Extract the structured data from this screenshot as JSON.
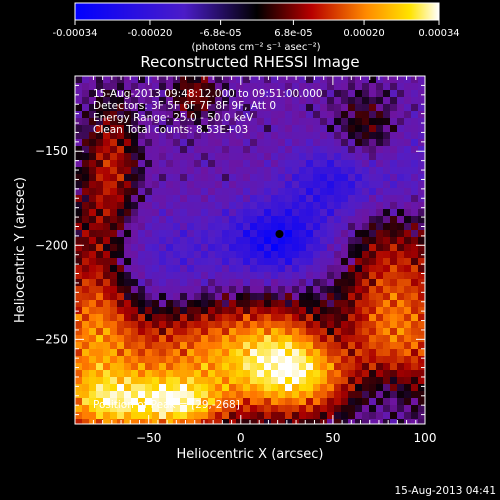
{
  "chart_data": {
    "type": "heatmap",
    "title": "Reconstructed RHESSI Image",
    "xlabel": "Heliocentric X (arcsec)",
    "ylabel": "Heliocentric Y (arcsec)",
    "xlim": [
      -90,
      100
    ],
    "ylim": [
      -295,
      -110
    ],
    "x_ticks": [
      -50,
      0,
      50,
      100
    ],
    "y_ticks": [
      -150,
      -200,
      -250
    ],
    "colorbar": {
      "range": [
        -0.00034,
        0.00034
      ],
      "tick_values": [
        -0.00034,
        -0.0002,
        -6.8e-05,
        6.8e-05,
        0.0002,
        0.00034
      ],
      "tick_labels": [
        "-0.00034",
        "-0.00020",
        "-6.8e-05",
        "6.8e-05",
        "0.00020",
        "0.00034"
      ],
      "unit_label": "(photons cm⁻² s⁻¹ asec⁻²)"
    },
    "info_lines": [
      "15-Aug-2013 09:48:12.000 to 09:51:00.000",
      "Detectors: 3F 5F 6F 7F 8F 9F, Att 0",
      "Energy Range: 25.0 - 50.0 keV",
      "Clean    Total counts: 8.53E+03"
    ],
    "peak_label": "Position of Peak = [29,-268]",
    "peak": {
      "x": 29,
      "y": -268
    },
    "timestamp": "15-Aug-2013 04:41",
    "colors": {
      "background": "#000000",
      "negative_min": "#0000ff",
      "neutral": "#000000",
      "positive_max": "#ffffff"
    }
  }
}
